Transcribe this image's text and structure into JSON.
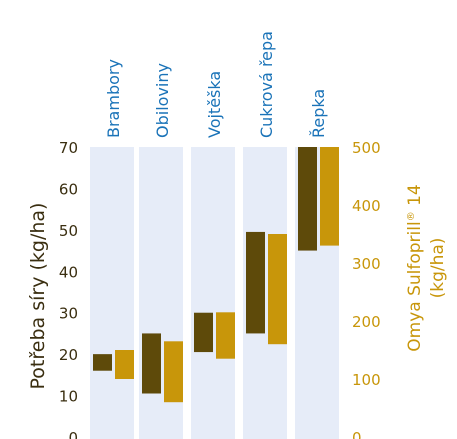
{
  "chart_data": {
    "type": "bar",
    "chart_kind": "floating range bars (min-max)",
    "categories": [
      "Brambory",
      "Obiloviny",
      "Vojtěška",
      "Cukrová řepa",
      "Řepka"
    ],
    "series": [
      {
        "name": "",
        "axis": "left",
        "unit": "kg/ha",
        "color": "#5e4a0a",
        "ranges": [
          [
            16,
            20
          ],
          [
            10.5,
            25
          ],
          [
            20.5,
            30
          ],
          [
            25,
            49.5
          ],
          [
            45,
            70
          ]
        ]
      },
      {
        "name": "",
        "axis": "right",
        "unit": "kg/ha",
        "color": "#c8960a",
        "ranges": [
          [
            100,
            150
          ],
          [
            60,
            165
          ],
          [
            135,
            215
          ],
          [
            160,
            350
          ],
          [
            330,
            500
          ]
        ]
      }
    ],
    "left_axis": {
      "label": "Potřeba síry (kg/ha)",
      "range": [
        0,
        70
      ],
      "ticks": [
        0,
        10,
        20,
        30,
        40,
        50,
        60,
        70
      ],
      "color": "#3a2e10"
    },
    "right_axis": {
      "label_line1": "Omya Sulfoprill",
      "label_reg": "®",
      "label_num": " 14",
      "label_line2": "(kg/ha)",
      "range": [
        0,
        500
      ],
      "ticks": [
        0,
        100,
        200,
        300,
        400,
        500
      ],
      "color": "#c8960a"
    },
    "category_label_color": "#1a73b8",
    "panel_color": "#e6ecf8",
    "grid": false,
    "legend": "none"
  }
}
